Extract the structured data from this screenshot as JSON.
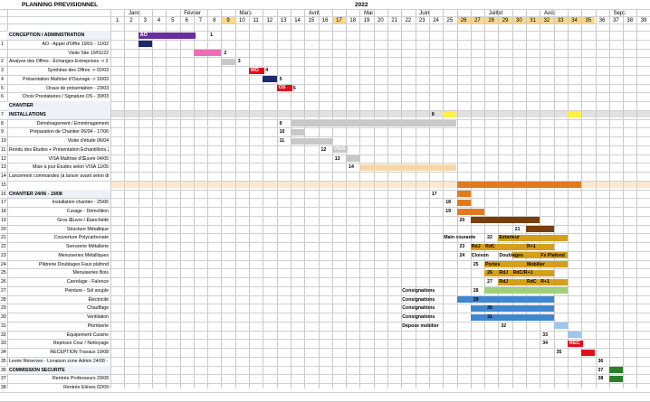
{
  "title": "PLANNING PREVISIONNEL",
  "year": "2022",
  "months": [
    "Janv.",
    "Février",
    "Mars",
    "Avril",
    "Mai",
    "Juin",
    "Juillet",
    "Août",
    "Sept."
  ],
  "weeks": [
    "1",
    "2",
    "3",
    "4",
    "5",
    "6",
    "7",
    "8",
    "9",
    "10",
    "11",
    "12",
    "13",
    "14",
    "15",
    "16",
    "17",
    "18",
    "19",
    "20",
    "21",
    "22",
    "23",
    "24",
    "25",
    "26",
    "27",
    "28",
    "29",
    "30",
    "31",
    "32",
    "33",
    "34",
    "35",
    "36",
    "37",
    "38",
    "39"
  ],
  "colors": {
    "purple": "#6a2ea0",
    "navy": "#1c2a6b",
    "pink": "#e86fb2",
    "red": "#e0101a",
    "gray": "#c8c8c8",
    "yellow": "#fff23a",
    "peach": "#f7d7a8",
    "orange": "#e07a20",
    "brown": "#7a3e0b",
    "amber": "#d4a018",
    "green": "#9fd07a",
    "blue": "#3f86d0",
    "lightblue": "#9ec6ea",
    "darkgreen": "#2e7d2e"
  },
  "rows": [
    {
      "num": "",
      "label": "CONCEPTION / ADMINISTRATION",
      "section": true
    },
    {
      "num": "1",
      "label": "AO - Appel d'Offre 19/01 - 11/02"
    },
    {
      "num": "",
      "label": "Visite Site 19/01/22"
    },
    {
      "num": "2",
      "label": "Analyse des Offres - Échanges Entreprises -> 25/02"
    },
    {
      "num": "3",
      "label": "Synthèse des Offres -> 02/03"
    },
    {
      "num": "4",
      "label": "Présentation Maîtrise d'Ouvrage -> 16/03"
    },
    {
      "num": "5",
      "label": "Oraux de présentation - 23/03"
    },
    {
      "num": "6",
      "label": "Choix Prestataires / Signature OS - 30/03"
    },
    {
      "num": "",
      "label": "CHANTIER",
      "section": true
    },
    {
      "num": "7",
      "label": "INSTALLATIONS",
      "section": true
    },
    {
      "num": "8",
      "label": "Déménagement / Emménagement"
    },
    {
      "num": "9",
      "label": "Préparation de Chantier 06/04 - 17/06"
    },
    {
      "num": "10",
      "label": "Visite d'étude 06/04"
    },
    {
      "num": "11",
      "label": "Rendu des Études + Présentation Echantillons 27/04"
    },
    {
      "num": "12",
      "label": "VISA Maîtrise d'Œuvre 04/05"
    },
    {
      "num": "13",
      "label": "Mise à jour Études selon VISA 11/05"
    },
    {
      "num": "14",
      "label": "Lancement commandes (à lancer avant selon disponibilité produits)"
    },
    {
      "num": "15",
      "label": ""
    },
    {
      "num": "16",
      "label": "CHANTIER 24/06 - 19/08",
      "section": true
    },
    {
      "num": "17",
      "label": "Installation chantier - 25/06"
    },
    {
      "num": "18",
      "label": "Curage - Démolition"
    },
    {
      "num": "19",
      "label": "Gros Œuvre / Étanchéité"
    },
    {
      "num": "20",
      "label": "Structure Métallique"
    },
    {
      "num": "21",
      "label": "Couverture Polycarbonate"
    },
    {
      "num": "22",
      "label": "Serrurerie Métallerie"
    },
    {
      "num": "23",
      "label": "Menuiseries Métalliques"
    },
    {
      "num": "24",
      "label": "Plâtrerie Doublages Faux plafond"
    },
    {
      "num": "25",
      "label": "Menuiseries Bois"
    },
    {
      "num": "26",
      "label": "Carrelage - Faïence"
    },
    {
      "num": "27",
      "label": "Peinture - Sol souple"
    },
    {
      "num": "28",
      "label": "Électricité"
    },
    {
      "num": "29",
      "label": "Chauffage"
    },
    {
      "num": "30",
      "label": "Ventilation"
    },
    {
      "num": "31",
      "label": "Plomberie"
    },
    {
      "num": "32",
      "label": "Équipement Cuisine"
    },
    {
      "num": "33",
      "label": "Reprises Cour / Nettoyage"
    },
    {
      "num": "34",
      "label": "RECEPTION Travaux 19/08"
    },
    {
      "num": "35",
      "label": "Levée Réserves - Livraison zone Admin 24/08 - le reste le 28/08"
    },
    {
      "num": "36",
      "label": "COMMISSION SECURITE",
      "section": true
    },
    {
      "num": "37",
      "label": "Rentrée Professeurs 29/08"
    },
    {
      "num": "38",
      "label": "Rentrée Elèves 02/09"
    }
  ],
  "bars": [
    {
      "row": 1,
      "start": 3,
      "end": 6,
      "color": "purple",
      "text": "AO",
      "textColor": "#fff"
    },
    {
      "row": 2,
      "start": 3,
      "end": 3,
      "color": "navy"
    },
    {
      "row": 3,
      "start": 7,
      "end": 8,
      "color": "pink"
    },
    {
      "row": 4,
      "start": 9,
      "end": 9,
      "color": "gray"
    },
    {
      "row": 5,
      "start": 11,
      "end": 11,
      "color": "red",
      "text": "MO",
      "textColor": "#fff"
    },
    {
      "row": 6,
      "start": 12,
      "end": 12,
      "color": "navy"
    },
    {
      "row": 7,
      "start": 13,
      "end": 13,
      "color": "red",
      "text": "OS",
      "textColor": "#fff"
    },
    {
      "row": 10,
      "start": 1,
      "end": 39,
      "color": "gray",
      "light": true
    },
    {
      "row": 10,
      "start": 25,
      "end": 25,
      "color": "yellow"
    },
    {
      "row": 10,
      "start": 34,
      "end": 34,
      "color": "yellow"
    },
    {
      "row": 11,
      "start": 14,
      "end": 25,
      "color": "gray"
    },
    {
      "row": 12,
      "start": 14,
      "end": 14,
      "color": "gray"
    },
    {
      "row": 13,
      "start": 14,
      "end": 16,
      "color": "gray"
    },
    {
      "row": 14,
      "start": 17,
      "end": 17,
      "color": "gray",
      "text": "VISA",
      "textColor": "#fff"
    },
    {
      "row": 15,
      "start": 18,
      "end": 18,
      "color": "gray"
    },
    {
      "row": 16,
      "start": 19,
      "end": 25,
      "color": "peach"
    },
    {
      "row": 18,
      "start": 1,
      "end": 39,
      "color": "peach",
      "light": true
    },
    {
      "row": 18,
      "start": 26,
      "end": 34,
      "color": "orange"
    },
    {
      "row": 19,
      "start": 26,
      "end": 26,
      "color": "orange"
    },
    {
      "row": 20,
      "start": 26,
      "end": 26,
      "color": "orange"
    },
    {
      "row": 21,
      "start": 26,
      "end": 27,
      "color": "orange"
    },
    {
      "row": 22,
      "start": 27,
      "end": 31,
      "color": "brown"
    },
    {
      "row": 23,
      "start": 31,
      "end": 32,
      "color": "brown"
    },
    {
      "row": 24,
      "start": 29,
      "end": 33,
      "color": "amber"
    },
    {
      "row": 25,
      "start": 27,
      "end": 32,
      "color": "amber"
    },
    {
      "row": 26,
      "start": 30,
      "end": 33,
      "color": "amber"
    },
    {
      "row": 27,
      "start": 28,
      "end": 33,
      "color": "amber"
    },
    {
      "row": 28,
      "start": 28,
      "end": 32,
      "color": "amber"
    },
    {
      "row": 29,
      "start": 29,
      "end": 33,
      "color": "amber"
    },
    {
      "row": 30,
      "start": 28,
      "end": 33,
      "color": "green"
    },
    {
      "row": 31,
      "start": 26,
      "end": 32,
      "color": "blue"
    },
    {
      "row": 32,
      "start": 27,
      "end": 32,
      "color": "blue"
    },
    {
      "row": 33,
      "start": 27,
      "end": 32,
      "color": "blue"
    },
    {
      "row": 34,
      "start": 33,
      "end": 33,
      "color": "lightblue"
    },
    {
      "row": 35,
      "start": 34,
      "end": 34,
      "color": "lightblue"
    },
    {
      "row": 36,
      "start": 34,
      "end": 34,
      "color": "red",
      "text": "REC",
      "textColor": "#fff"
    },
    {
      "row": 37,
      "start": 35,
      "end": 35,
      "color": "red"
    },
    {
      "row": 39,
      "start": 37,
      "end": 37,
      "color": "darkgreen"
    },
    {
      "row": 40,
      "start": 37,
      "end": 37,
      "color": "darkgreen"
    }
  ],
  "markers": [
    {
      "row": 1,
      "col": 8,
      "text": "1"
    },
    {
      "row": 3,
      "col": 9,
      "text": "2"
    },
    {
      "row": 4,
      "col": 10,
      "text": "3"
    },
    {
      "row": 5,
      "col": 12,
      "text": "4"
    },
    {
      "row": 6,
      "col": 13,
      "text": "5"
    },
    {
      "row": 7,
      "col": 14,
      "text": "6"
    },
    {
      "row": 10,
      "col": 24,
      "text": "8"
    },
    {
      "row": 11,
      "col": 13,
      "text": "9"
    },
    {
      "row": 12,
      "col": 13,
      "text": "10"
    },
    {
      "row": 13,
      "col": 13,
      "text": "11"
    },
    {
      "row": 14,
      "col": 16,
      "text": "12"
    },
    {
      "row": 15,
      "col": 17,
      "text": "13"
    },
    {
      "row": 16,
      "col": 18,
      "text": "14"
    },
    {
      "row": 19,
      "col": 24,
      "text": "17"
    },
    {
      "row": 20,
      "col": 25,
      "text": "18"
    },
    {
      "row": 21,
      "col": 25,
      "text": "19"
    },
    {
      "row": 22,
      "col": 26,
      "text": "20"
    },
    {
      "row": 23,
      "col": 30,
      "text": "21"
    },
    {
      "row": 24,
      "col": 28,
      "text": "22"
    },
    {
      "row": 25,
      "col": 26,
      "text": "23"
    },
    {
      "row": 26,
      "col": 26,
      "text": "24"
    },
    {
      "row": 27,
      "col": 27,
      "text": "25"
    },
    {
      "row": 28,
      "col": 28,
      "text": "26"
    },
    {
      "row": 29,
      "col": 28,
      "text": "27"
    },
    {
      "row": 30,
      "col": 27,
      "text": "28"
    },
    {
      "row": 31,
      "col": 27,
      "text": "29"
    },
    {
      "row": 32,
      "col": 28,
      "text": "30"
    },
    {
      "row": 33,
      "col": 28,
      "text": "31"
    },
    {
      "row": 34,
      "col": 29,
      "text": "32"
    },
    {
      "row": 35,
      "col": 32,
      "text": "33"
    },
    {
      "row": 36,
      "col": 32,
      "text": "34"
    },
    {
      "row": 37,
      "col": 33,
      "text": "35"
    },
    {
      "row": 38,
      "col": 36,
      "text": "36"
    },
    {
      "row": 39,
      "col": 36,
      "text": "37"
    },
    {
      "row": 40,
      "col": 36,
      "text": "38"
    }
  ],
  "phaseLabels": [
    {
      "row": 24,
      "col": 25,
      "text": "Main courante"
    },
    {
      "row": 24,
      "col": 29,
      "text": "Exterieur"
    },
    {
      "row": 25,
      "col": 27,
      "text": "RdJ"
    },
    {
      "row": 25,
      "col": 28,
      "text": "RdC"
    },
    {
      "row": 25,
      "col": 31,
      "text": "R+1"
    },
    {
      "row": 26,
      "col": 27,
      "text": "Cloison"
    },
    {
      "row": 26,
      "col": 29,
      "text": "Doublages"
    },
    {
      "row": 26,
      "col": 32,
      "text": "Fx Plafond"
    },
    {
      "row": 27,
      "col": 28,
      "text": "Portes"
    },
    {
      "row": 27,
      "col": 31,
      "text": "Mobilier"
    },
    {
      "row": 28,
      "col": 29,
      "text": "RdJ"
    },
    {
      "row": 28,
      "col": 30,
      "text": "RdC/R+1"
    },
    {
      "row": 29,
      "col": 29,
      "text": "RdJ"
    },
    {
      "row": 29,
      "col": 31,
      "text": "RdC"
    },
    {
      "row": 29,
      "col": 32,
      "text": "R+1"
    },
    {
      "row": 30,
      "col": 22,
      "text": "Consignations"
    },
    {
      "row": 31,
      "col": 22,
      "text": "Consignations"
    },
    {
      "row": 32,
      "col": 22,
      "text": "Consignations"
    },
    {
      "row": 33,
      "col": 22,
      "text": "Consignations"
    },
    {
      "row": 34,
      "col": 22,
      "text": "Dépose mobilier"
    }
  ]
}
